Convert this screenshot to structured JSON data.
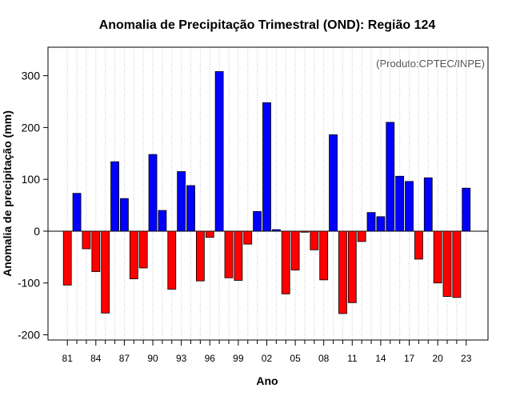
{
  "chart_data": {
    "type": "bar",
    "title": "Anomalia de Precipitação Trimestral (OND): Região 124",
    "xlabel": "Ano",
    "ylabel": "Anomalia de precipitação (mm)",
    "credit": "(Produto:CPTEC/INPE)",
    "ylim": [
      -210,
      355
    ],
    "yticks": [
      -200,
      -100,
      0,
      100,
      200,
      300
    ],
    "positive_color": "#0000ff",
    "negative_color": "#ff0000",
    "categories": [
      "81",
      "82",
      "83",
      "84",
      "85",
      "86",
      "87",
      "88",
      "89",
      "90",
      "91",
      "92",
      "93",
      "94",
      "95",
      "96",
      "97",
      "98",
      "99",
      "00",
      "01",
      "02",
      "03",
      "04",
      "05",
      "06",
      "07",
      "08",
      "09",
      "10",
      "11",
      "12",
      "13",
      "14",
      "15",
      "16",
      "17",
      "18",
      "19",
      "20",
      "21",
      "22",
      "23"
    ],
    "x_tick_labels": [
      "81",
      "84",
      "87",
      "90",
      "93",
      "96",
      "99",
      "02",
      "05",
      "08",
      "11",
      "14",
      "17",
      "20",
      "23"
    ],
    "values": [
      -104,
      73,
      -34,
      -78,
      -158,
      134,
      63,
      -92,
      -71,
      148,
      40,
      -112,
      115,
      88,
      -96,
      -12,
      308,
      -90,
      -95,
      -25,
      38,
      248,
      3,
      -121,
      -75,
      -2,
      -36,
      -94,
      186,
      -159,
      -138,
      -20,
      36,
      28,
      210,
      106,
      96,
      -54,
      103,
      -100,
      -126,
      -128,
      83
    ]
  }
}
